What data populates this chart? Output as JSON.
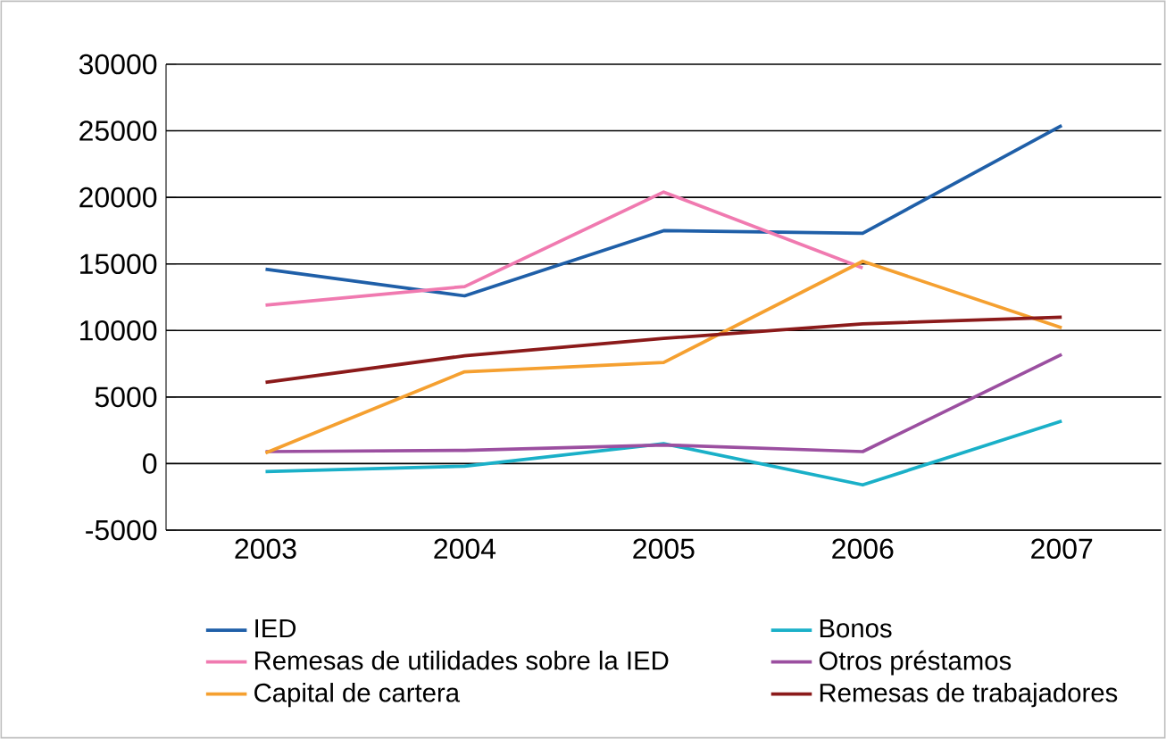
{
  "chart_data": {
    "type": "line",
    "categories": [
      "2003",
      "2004",
      "2005",
      "2006",
      "2007"
    ],
    "series": [
      {
        "name": "IED",
        "color": "#1f5fa8",
        "values": [
          14600,
          12600,
          17500,
          17300,
          25400
        ]
      },
      {
        "name": "Bonos",
        "color": "#1ab0c8",
        "values": [
          -600,
          -200,
          1500,
          -1600,
          3200
        ]
      },
      {
        "name": "Remesas de utilidades sobre la IED",
        "color": "#f07ab0",
        "values": [
          11900,
          13300,
          20400,
          14700,
          null
        ]
      },
      {
        "name": "Otros préstamos",
        "color": "#9b4fa0",
        "values": [
          900,
          1000,
          1400,
          900,
          8200
        ]
      },
      {
        "name": "Capital de cartera",
        "color": "#f5a030",
        "values": [
          800,
          6900,
          7600,
          15200,
          10200
        ]
      },
      {
        "name": "Remesas de trabajadores",
        "color": "#8b1a1a",
        "values": [
          6100,
          8100,
          9400,
          10500,
          11000
        ]
      }
    ],
    "ylim": [
      -5000,
      30000
    ],
    "yticks": [
      -5000,
      0,
      5000,
      10000,
      15000,
      20000,
      25000,
      30000
    ],
    "grid": "y",
    "legend": "bottom",
    "marker": "none",
    "line_style": "solid"
  }
}
